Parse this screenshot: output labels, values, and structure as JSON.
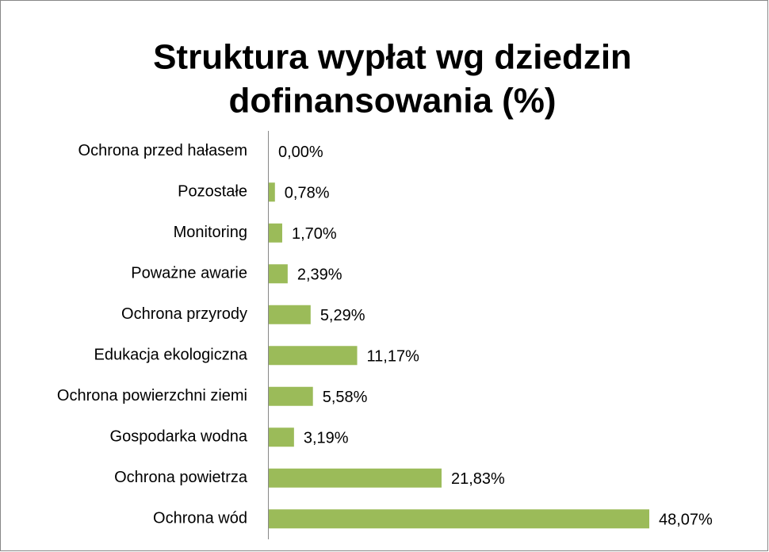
{
  "chart_data": {
    "type": "bar",
    "orientation": "horizontal",
    "title": [
      "Struktura wypłat wg dziedzin",
      "dofinansowania (%)"
    ],
    "categories": [
      "Ochrona przed hałasem",
      "Pozostałe",
      "Monitoring",
      "Poważne awarie",
      "Ochrona przyrody",
      "Edukacja ekologiczna",
      "Ochrona powierzchni ziemi",
      "Gospodarka wodna",
      "Ochrona powietrza",
      "Ochrona wód"
    ],
    "values": [
      0.0,
      0.78,
      1.7,
      2.39,
      5.29,
      11.17,
      5.58,
      3.19,
      21.83,
      48.07
    ],
    "value_labels": [
      "0,00%",
      "0,78%",
      "1,70%",
      "2,39%",
      "5,29%",
      "11,17%",
      "5,58%",
      "3,19%",
      "21,83%",
      "48,07%"
    ],
    "color": "#9bbb59"
  }
}
